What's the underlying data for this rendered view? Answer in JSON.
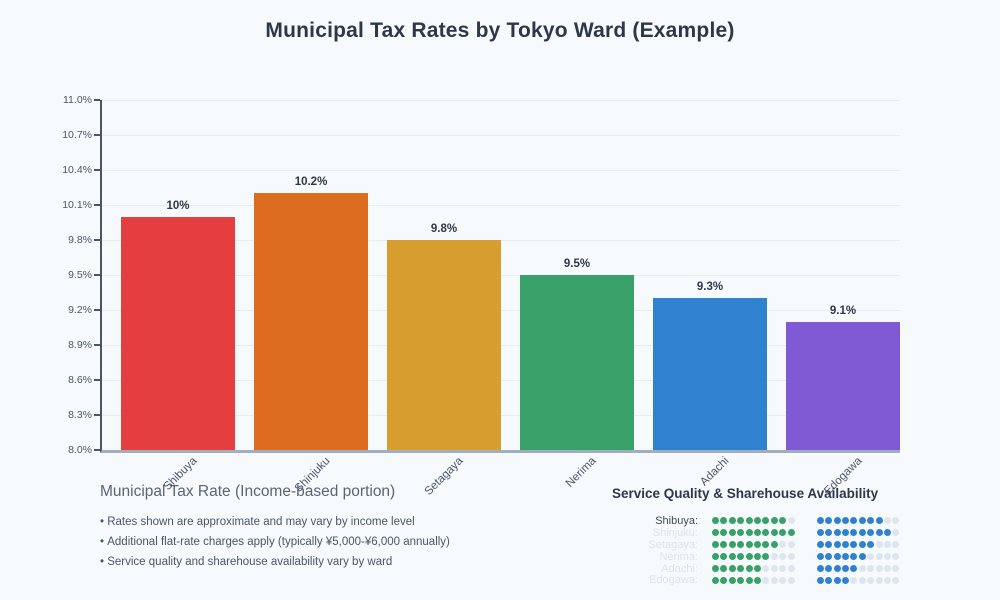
{
  "title": "Municipal Tax Rates by Tokyo Ward (Example)",
  "chart_data": {
    "type": "bar",
    "title": "Municipal Tax Rates by Tokyo Ward (Example)",
    "categories": [
      "Shibuya",
      "Shinjuku",
      "Setagaya",
      "Nerima",
      "Adachi",
      "Edogawa"
    ],
    "values": [
      10.0,
      10.2,
      9.8,
      9.5,
      9.3,
      9.1
    ],
    "bar_labels": [
      "10%",
      "10.2%",
      "9.8%",
      "9.5%",
      "9.3%",
      "9.1%"
    ],
    "bar_colors": [
      "#e53e3e",
      "#dd6b20",
      "#d69e2e",
      "#38a169",
      "#3182ce",
      "#805ad5"
    ],
    "xlabel": "",
    "ylabel": "",
    "ylim": [
      8.0,
      11.0
    ],
    "ytick_labels": [
      "11.0%",
      "10.7%",
      "10.4%",
      "10.1%",
      "9.8%",
      "9.5%",
      "9.2%",
      "8.9%",
      "8.6%",
      "8.3%",
      "8.0%"
    ],
    "grid": true,
    "legend": false
  },
  "notes": {
    "heading": "Municipal Tax Rate (Income-based portion)",
    "bullets": [
      "Rates shown are approximate and may vary by income level",
      "Additional flat-rate charges apply (typically ¥5,000-¥6,000 annually)",
      "Service quality and sharehouse availability vary by ward"
    ]
  },
  "quality": {
    "heading": "Service Quality & Sharehouse Availability",
    "dots_per_group": 10,
    "colors": {
      "green": "#38a169",
      "blue": "#3182ce",
      "empty": "#dfe5ee"
    },
    "rows": [
      {
        "label": "Shibuya:",
        "green": 9,
        "blue": 8
      },
      {
        "label": "Shinjuku:",
        "green": 10,
        "blue": 9
      },
      {
        "label": "Setagaya:",
        "green": 8,
        "blue": 7
      },
      {
        "label": "Nerima:",
        "green": 7,
        "blue": 6
      },
      {
        "label": "Adachi:",
        "green": 6,
        "blue": 5
      },
      {
        "label": "Edogawa:",
        "green": 6,
        "blue": 4
      }
    ]
  }
}
